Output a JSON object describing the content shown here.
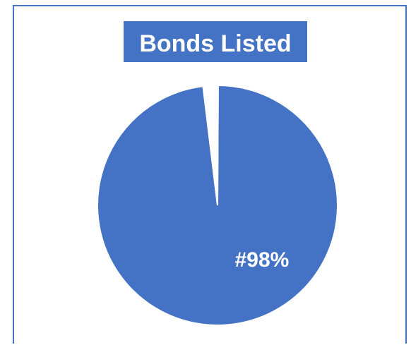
{
  "chart_data": {
    "type": "pie",
    "title": "Bonds Listed",
    "slices": [
      {
        "value": 98,
        "color": "#4472c4",
        "label": "#98%"
      },
      {
        "value": 2,
        "color": "#ffffff",
        "label": ""
      }
    ]
  },
  "colors": {
    "accent": "#4472c4",
    "title_text": "#ffffff",
    "data_label_text": "#ffffff"
  }
}
